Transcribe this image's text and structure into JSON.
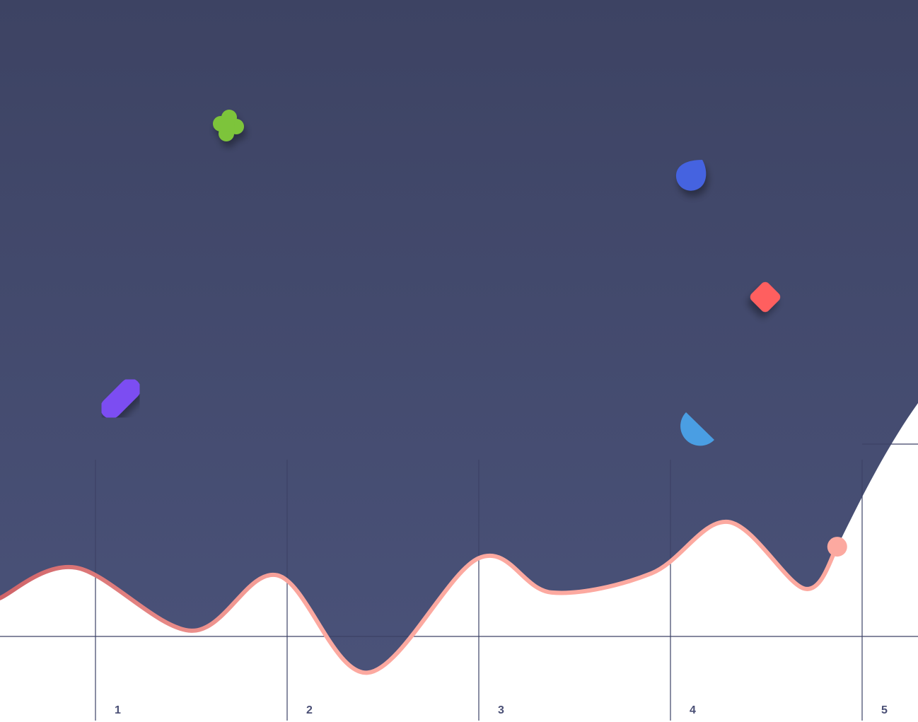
{
  "chart_data": {
    "type": "line",
    "title": "",
    "xlabel": "",
    "ylabel": "",
    "x_ticks": [
      "1",
      "2",
      "3",
      "4",
      "5"
    ],
    "xlim": [
      0.5,
      5.1
    ],
    "ylim": [
      0,
      1
    ],
    "grid": true,
    "legend": "none",
    "series": [
      {
        "points": [
          [
            0.5,
            0.2
          ],
          [
            0.9,
            0.36
          ],
          [
            1.5,
            0.03
          ],
          [
            1.95,
            0.32
          ],
          [
            2.42,
            -0.19
          ],
          [
            3.0,
            0.41
          ],
          [
            3.38,
            0.23
          ],
          [
            3.9,
            0.33
          ],
          [
            4.3,
            0.6
          ],
          [
            4.7,
            0.25
          ],
          [
            4.87,
            0.47
          ]
        ]
      }
    ],
    "end_marker": {
      "x": 4.87,
      "y": 0.47
    }
  },
  "colors": {
    "background": "#ffffff",
    "fill_top": "#3d4363",
    "fill_bottom": "#4a5279",
    "line_dark": "#cf6368",
    "line_light": "#fca9a0",
    "marker": "#fca9a0",
    "grid": "#3d4266",
    "tick_label": "#4a4f75",
    "clover": "#7dc43a",
    "drop": "#4563e0",
    "diamond": "#ff5f5f",
    "pill": "#7b4ef2",
    "quarter": "#4a9ee3"
  },
  "decorations": [
    "clover-icon",
    "drop-icon",
    "diamond-icon",
    "pill-icon",
    "quarter-circle-icon"
  ]
}
